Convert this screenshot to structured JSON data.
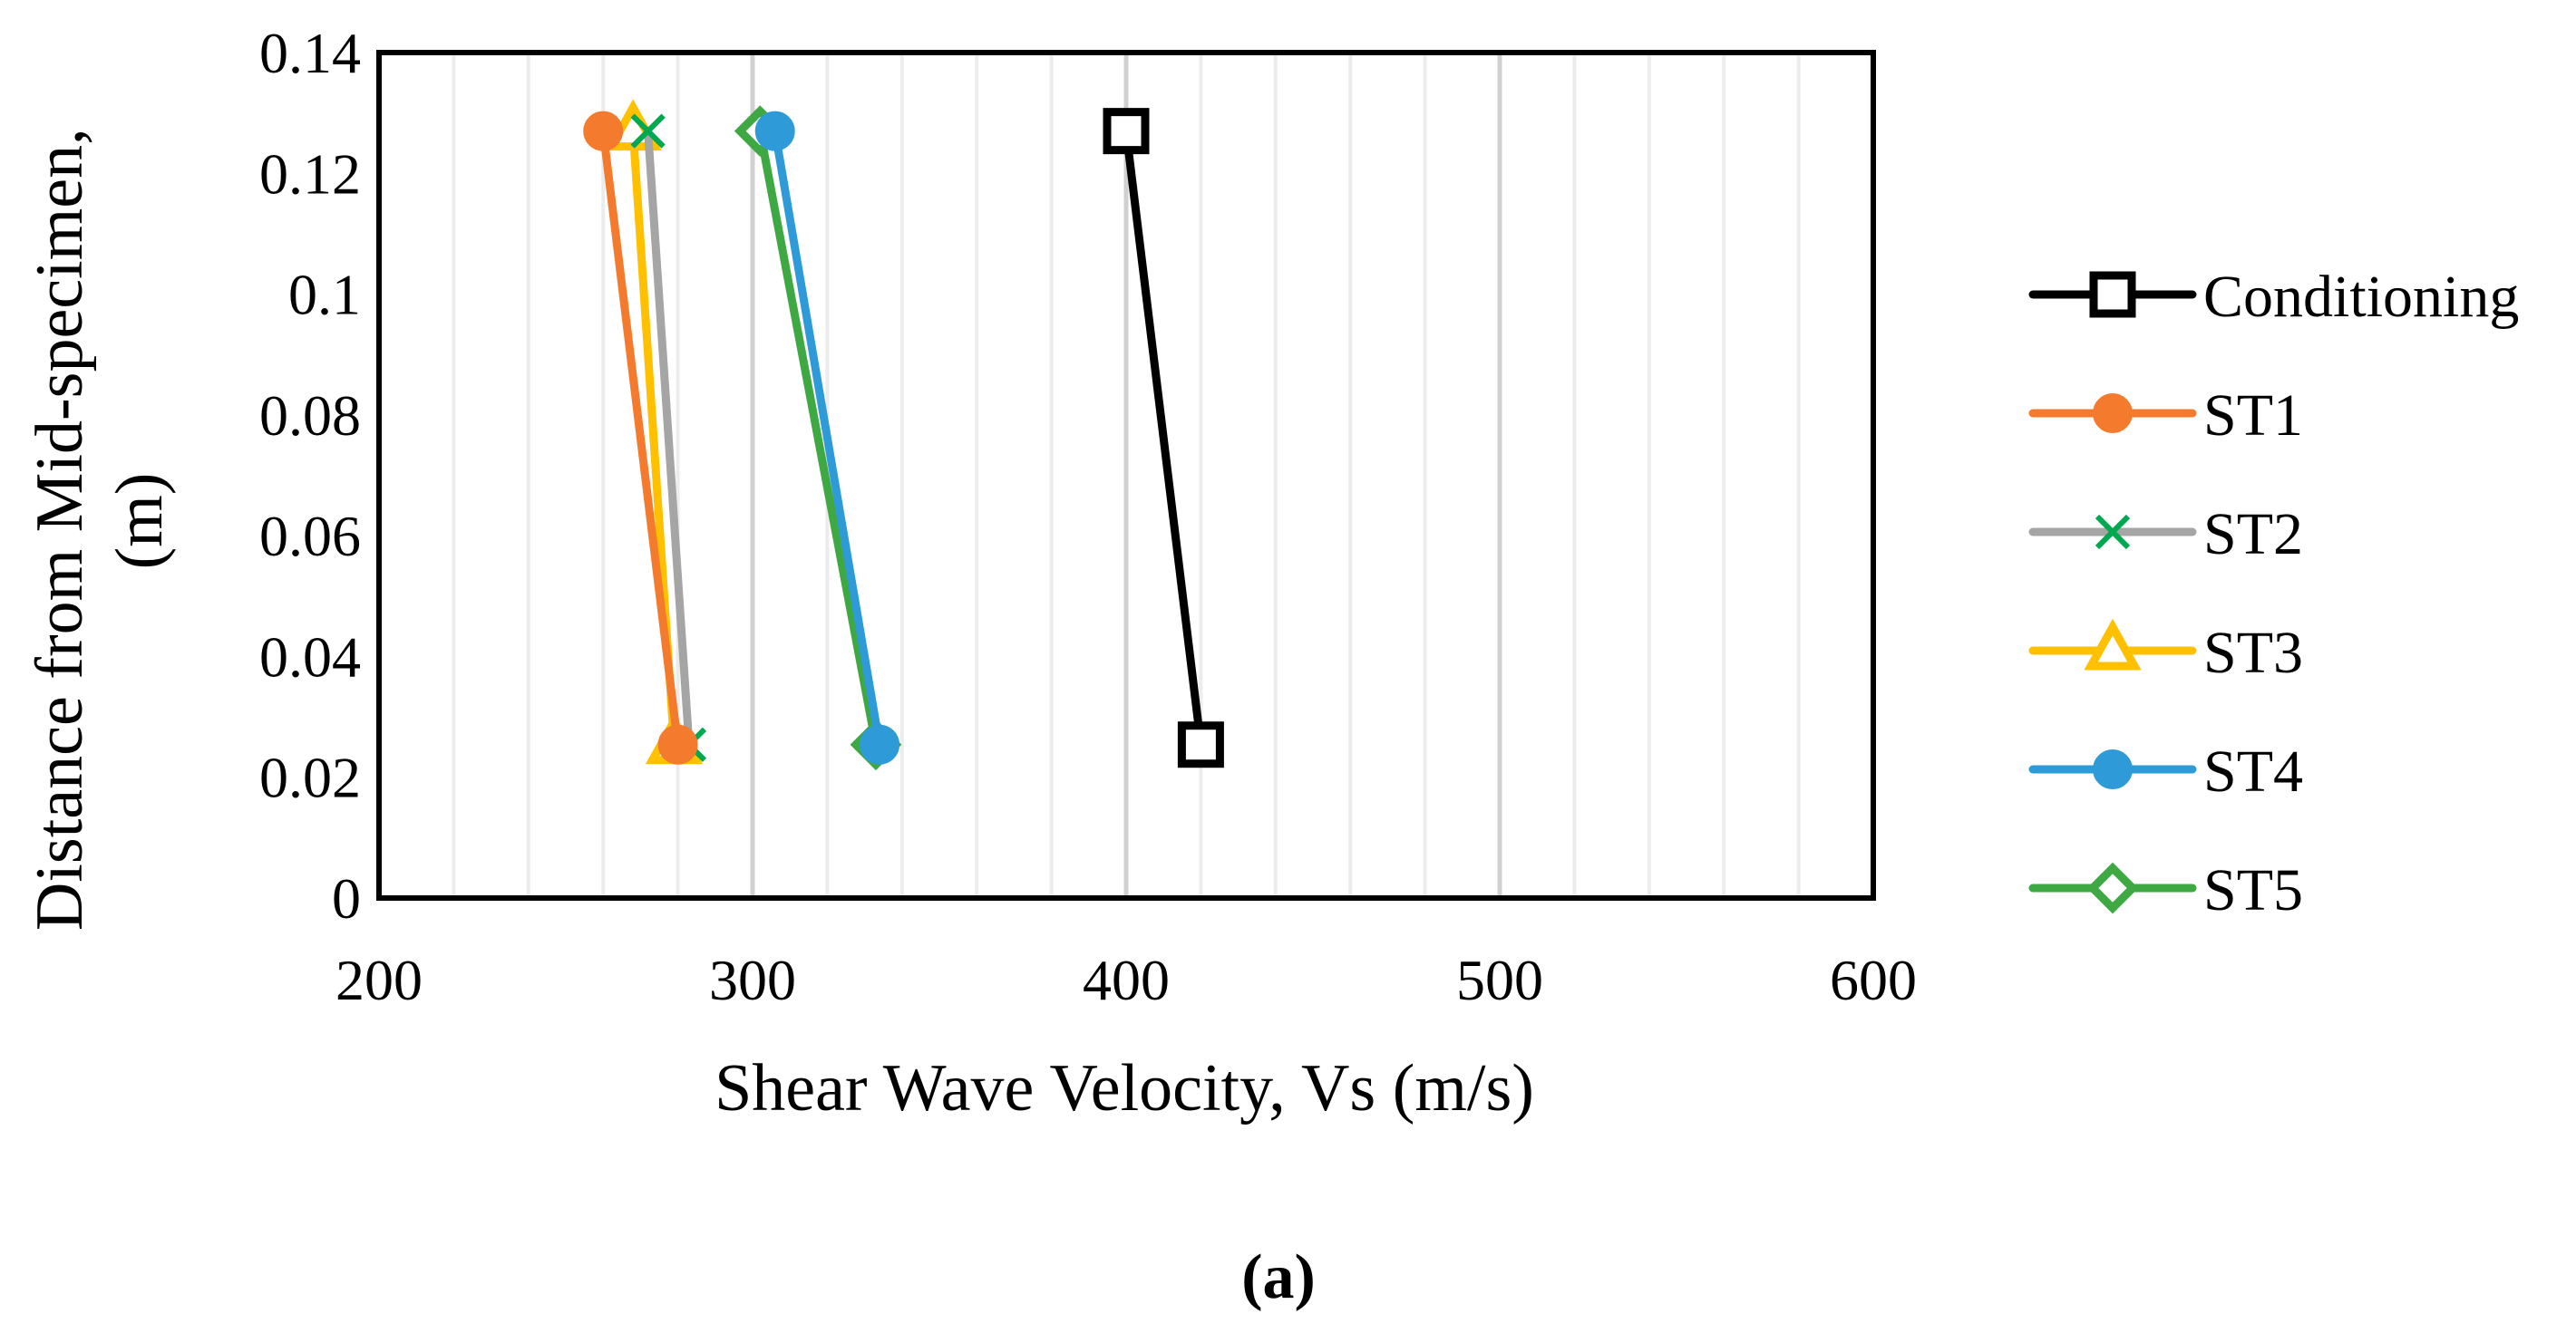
{
  "chart_data": {
    "type": "line",
    "title": "",
    "xlabel": "Shear Wave Velocity, Vs (m/s)",
    "ylabel_lines": [
      "Distance from Mid-specimen,",
      "(m)"
    ],
    "xlim": [
      200,
      600
    ],
    "ylim": [
      0,
      0.14
    ],
    "x_ticks": [
      200,
      300,
      400,
      500,
      600
    ],
    "y_ticks": [
      0,
      0.02,
      0.04,
      0.06,
      0.08,
      0.1,
      0.12,
      0.14
    ],
    "x_tick_labels": [
      "200",
      "300",
      "400",
      "500",
      "600"
    ],
    "y_tick_labels": [
      "0",
      "0.02",
      "0.04",
      "0.06",
      "0.08",
      "0.1",
      "0.12",
      "0.14"
    ],
    "x_minor_step": 20,
    "grid": "vertical",
    "legend_position": "right",
    "caption": "(a)",
    "series": [
      {
        "name": "Conditioning",
        "color": "#000000",
        "marker": "square-open",
        "points": [
          {
            "x": 400,
            "y": 0.127
          },
          {
            "x": 420,
            "y": 0.0254
          }
        ]
      },
      {
        "name": "ST1",
        "color": "#F47B2E",
        "marker": "circle",
        "points": [
          {
            "x": 260,
            "y": 0.127
          },
          {
            "x": 280,
            "y": 0.0254
          }
        ]
      },
      {
        "name": "ST2",
        "color": "#A5A5A5",
        "marker": "x",
        "marker_color": "#00A850",
        "points": [
          {
            "x": 272,
            "y": 0.127
          },
          {
            "x": 283,
            "y": 0.0254
          }
        ]
      },
      {
        "name": "ST3",
        "color": "#FFC000",
        "marker": "triangle-open",
        "points": [
          {
            "x": 268,
            "y": 0.127
          },
          {
            "x": 279,
            "y": 0.0254
          }
        ]
      },
      {
        "name": "ST4",
        "color": "#2E9BD8",
        "marker": "circle",
        "points": [
          {
            "x": 306,
            "y": 0.127
          },
          {
            "x": 334,
            "y": 0.0254
          }
        ]
      },
      {
        "name": "ST5",
        "color": "#3EA842",
        "marker": "diamond-open",
        "points": [
          {
            "x": 302,
            "y": 0.127
          },
          {
            "x": 333,
            "y": 0.0254
          }
        ]
      }
    ]
  }
}
